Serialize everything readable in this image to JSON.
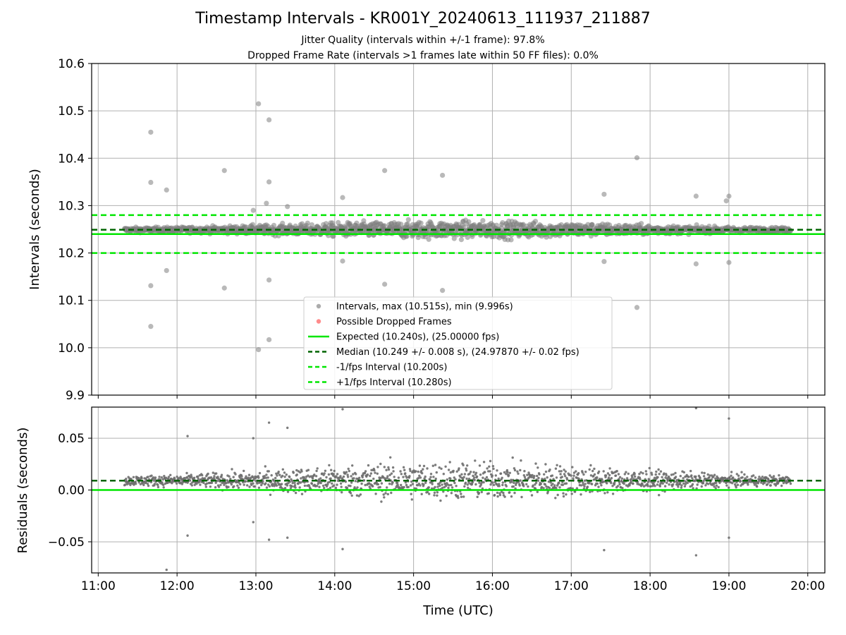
{
  "title": "Timestamp Intervals - KR001Y_20240613_111937_211887",
  "subtitle_1": "Jitter Quality (intervals within +/-1 frame): 97.8%",
  "subtitle_2": "Dropped Frame Rate (intervals >1 frames late within 50 FF files): 0.0%",
  "colors": {
    "points": "#808080",
    "dropped": "#ff4d4d",
    "expected": "#00e600",
    "median": "#006400",
    "interval_bounds": "#00e600",
    "grid": "#b0b0b0"
  },
  "chart_data": [
    {
      "type": "scatter",
      "ylabel": "Intervals (seconds)",
      "ylim": [
        9.9,
        10.6
      ],
      "xlim": [
        "10:55",
        "20:13"
      ],
      "x_ticks": [
        "11:00",
        "12:00",
        "13:00",
        "14:00",
        "15:00",
        "16:00",
        "17:00",
        "18:00",
        "19:00",
        "20:00"
      ],
      "y_ticks": [
        "9.9",
        "10.0",
        "10.1",
        "10.2",
        "10.3",
        "10.4",
        "10.5",
        "10.6"
      ],
      "grid": true,
      "legend_position": "bottom-center",
      "series": [
        {
          "name": "Intervals, max (10.515s), min (9.996s)",
          "kind": "points",
          "time_range": [
            "11:20",
            "19:47"
          ],
          "center": 10.249,
          "spread": 0.008
        },
        {
          "name": "Possible Dropped Frames",
          "kind": "points",
          "values": []
        }
      ],
      "reference_lines": [
        {
          "name": "Expected (10.240s), (25.00000 fps)",
          "y": 10.24,
          "style": "solid"
        },
        {
          "name": "Median (10.249 +/- 0.008 s), (24.97870 +/- 0.02 fps)",
          "y": 10.249,
          "style": "dashed"
        },
        {
          "name": "-1/fps Interval (10.200s)",
          "y": 10.2,
          "style": "dashed"
        },
        {
          "name": "+1/fps Interval (10.280s)",
          "y": 10.28,
          "style": "dashed"
        }
      ],
      "outliers": [
        {
          "x": "11:40",
          "y": 10.455
        },
        {
          "x": "11:40",
          "y": 10.349
        },
        {
          "x": "11:40",
          "y": 10.131
        },
        {
          "x": "11:40",
          "y": 10.045
        },
        {
          "x": "11:52",
          "y": 10.333
        },
        {
          "x": "11:52",
          "y": 10.163
        },
        {
          "x": "12:36",
          "y": 10.374
        },
        {
          "x": "12:36",
          "y": 10.126
        },
        {
          "x": "13:02",
          "y": 10.515
        },
        {
          "x": "13:02",
          "y": 9.996
        },
        {
          "x": "12:58",
          "y": 10.29
        },
        {
          "x": "13:10",
          "y": 10.481
        },
        {
          "x": "13:10",
          "y": 10.35
        },
        {
          "x": "13:10",
          "y": 10.143
        },
        {
          "x": "13:10",
          "y": 10.017
        },
        {
          "x": "13:08",
          "y": 10.305
        },
        {
          "x": "13:24",
          "y": 10.298
        },
        {
          "x": "14:06",
          "y": 10.317
        },
        {
          "x": "14:06",
          "y": 10.183
        },
        {
          "x": "14:38",
          "y": 10.374
        },
        {
          "x": "14:38",
          "y": 10.134
        },
        {
          "x": "15:22",
          "y": 10.364
        },
        {
          "x": "15:22",
          "y": 10.121
        },
        {
          "x": "17:25",
          "y": 10.324
        },
        {
          "x": "17:25",
          "y": 10.182
        },
        {
          "x": "17:50",
          "y": 10.401
        },
        {
          "x": "17:50",
          "y": 10.085
        },
        {
          "x": "18:35",
          "y": 10.32
        },
        {
          "x": "18:35",
          "y": 10.177
        },
        {
          "x": "18:58",
          "y": 10.31
        },
        {
          "x": "19:00",
          "y": 10.32
        },
        {
          "x": "19:00",
          "y": 10.18
        }
      ]
    },
    {
      "type": "scatter",
      "xlabel": "Time (UTC)",
      "ylabel": "Residuals (seconds)",
      "ylim": [
        -0.08,
        0.08
      ],
      "y_ticks": [
        "−0.05",
        "0.00",
        "0.05"
      ],
      "y_tick_values": [
        -0.05,
        0.0,
        0.05
      ],
      "grid": true,
      "series": [
        {
          "name": "Residuals",
          "kind": "points",
          "time_range": [
            "11:20",
            "19:47"
          ],
          "center": 0.009,
          "spread": 0.008
        }
      ],
      "reference_lines": [
        {
          "name": "Expected",
          "y": 0.0,
          "style": "solid"
        },
        {
          "name": "Median",
          "y": 0.009,
          "style": "dashed"
        }
      ],
      "outliers": [
        {
          "x": "11:52",
          "y": -0.077
        },
        {
          "x": "12:08",
          "y": 0.052
        },
        {
          "x": "12:08",
          "y": -0.044
        },
        {
          "x": "13:10",
          "y": 0.065
        },
        {
          "x": "13:10",
          "y": -0.048
        },
        {
          "x": "13:24",
          "y": 0.06
        },
        {
          "x": "13:24",
          "y": -0.046
        },
        {
          "x": "12:58",
          "y": 0.05
        },
        {
          "x": "12:58",
          "y": -0.031
        },
        {
          "x": "14:06",
          "y": 0.078
        },
        {
          "x": "14:06",
          "y": -0.057
        },
        {
          "x": "17:25",
          "y": -0.058
        },
        {
          "x": "18:35",
          "y": 0.079
        },
        {
          "x": "18:35",
          "y": -0.063
        },
        {
          "x": "19:00",
          "y": 0.069
        },
        {
          "x": "19:00",
          "y": -0.046
        }
      ]
    }
  ]
}
